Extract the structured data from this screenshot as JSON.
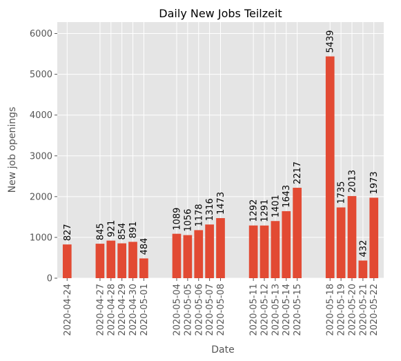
{
  "chart_data": {
    "type": "bar",
    "title": "Daily New Jobs Teilzeit",
    "xlabel": "Date",
    "ylabel": "New job openings",
    "x_axis": "date",
    "ylim": [
      0,
      6280
    ],
    "yticks": [
      0,
      1000,
      2000,
      3000,
      4000,
      5000,
      6000
    ],
    "grid": true,
    "style": "ggplot",
    "colors": {
      "bar": "#E24A33",
      "plot_bg": "#E5E5E5",
      "grid": "#FFFFFF",
      "tick_text": "#555555",
      "label_text": "#555555",
      "title_text": "#000000",
      "value_text": "#000000"
    },
    "series": [
      {
        "points": [
          {
            "date": "2020-04-24",
            "value": 827
          },
          {
            "date": "2020-04-27",
            "value": 845
          },
          {
            "date": "2020-04-28",
            "value": 921
          },
          {
            "date": "2020-04-29",
            "value": 854
          },
          {
            "date": "2020-04-30",
            "value": 891
          },
          {
            "date": "2020-05-01",
            "value": 484
          },
          {
            "date": "2020-05-04",
            "value": 1089
          },
          {
            "date": "2020-05-05",
            "value": 1056
          },
          {
            "date": "2020-05-06",
            "value": 1178
          },
          {
            "date": "2020-05-07",
            "value": 1316
          },
          {
            "date": "2020-05-08",
            "value": 1473
          },
          {
            "date": "2020-05-11",
            "value": 1292
          },
          {
            "date": "2020-05-12",
            "value": 1291
          },
          {
            "date": "2020-05-13",
            "value": 1401
          },
          {
            "date": "2020-05-14",
            "value": 1643
          },
          {
            "date": "2020-05-15",
            "value": 2217
          },
          {
            "date": "2020-05-18",
            "value": 5439
          },
          {
            "date": "2020-05-19",
            "value": 1735
          },
          {
            "date": "2020-05-20",
            "value": 2013
          },
          {
            "date": "2020-05-21",
            "value": 432
          },
          {
            "date": "2020-05-22",
            "value": 1973
          }
        ]
      }
    ]
  }
}
